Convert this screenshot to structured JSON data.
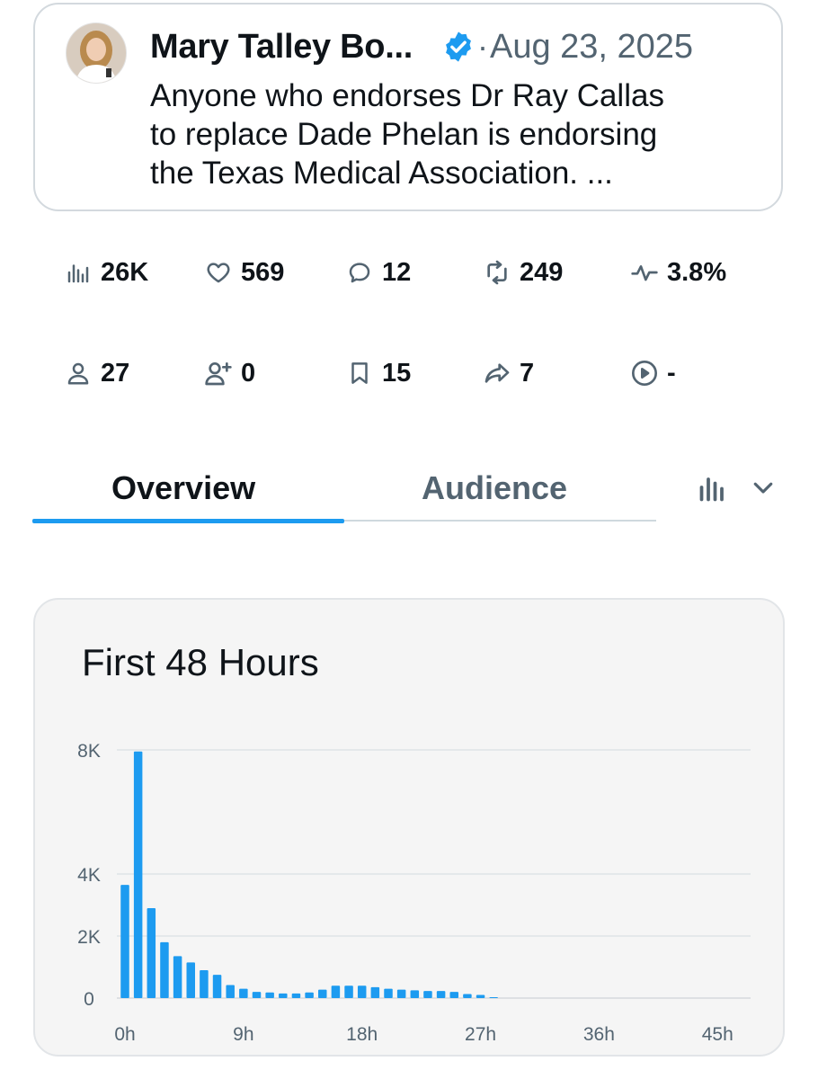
{
  "tweet": {
    "author_name": "Mary Talley Bo...",
    "date_separator": "·",
    "date": "Aug 23, 2025",
    "text_lines": [
      "Anyone who endorses Dr Ray Callas",
      "to replace Dade Phelan is endorsing",
      "the Texas Medical Association. ..."
    ]
  },
  "metrics": {
    "impressions": "26K",
    "likes": "569",
    "replies": "12",
    "reposts": "249",
    "engagement_rate": "3.8%",
    "profile_visits": "27",
    "new_follows": "0",
    "bookmarks": "15",
    "shares": "7",
    "video_views": "-"
  },
  "tabs": {
    "overview": "Overview",
    "audience": "Audience",
    "active": "overview"
  },
  "chart_data": {
    "type": "bar",
    "title": "First 48 Hours",
    "xlabel": "",
    "ylabel": "",
    "y_tick_labels": [
      "0",
      "2K",
      "4K",
      "8K"
    ],
    "y_ticks": [
      0,
      2000,
      4000,
      8000
    ],
    "ylim": [
      0,
      8000
    ],
    "x_tick_labels": [
      "0h",
      "9h",
      "18h",
      "27h",
      "36h",
      "45h"
    ],
    "x_ticks": [
      0,
      9,
      18,
      27,
      36,
      45
    ],
    "xlim": [
      0,
      48
    ],
    "grid": true,
    "bar_color": "#1d9bf0",
    "x": [
      0,
      1,
      2,
      3,
      4,
      5,
      6,
      7,
      8,
      9,
      10,
      11,
      12,
      13,
      14,
      15,
      16,
      17,
      18,
      19,
      20,
      21,
      22,
      23,
      24,
      25,
      26,
      27,
      28
    ],
    "values": [
      3650,
      7950,
      2900,
      1800,
      1350,
      1150,
      900,
      750,
      420,
      300,
      200,
      180,
      150,
      150,
      180,
      270,
      400,
      400,
      400,
      350,
      300,
      270,
      250,
      230,
      230,
      200,
      130,
      100,
      30
    ]
  },
  "colors": {
    "accent": "#1d9bf0",
    "text_primary": "#0f1419",
    "text_secondary": "#536471"
  },
  "icons": {
    "impressions": "bar-chart-icon",
    "likes": "heart-icon",
    "replies": "speech-bubble-icon",
    "reposts": "repost-icon",
    "engagement": "pulse-icon",
    "profile_visits": "person-icon",
    "new_follows": "person-plus-icon",
    "bookmarks": "bookmark-icon",
    "shares": "share-arrow-icon",
    "video_views": "play-circle-icon",
    "chart_toggle": "bar-chart-icon",
    "dropdown": "chevron-down-icon",
    "verified": "verified-badge-icon"
  }
}
